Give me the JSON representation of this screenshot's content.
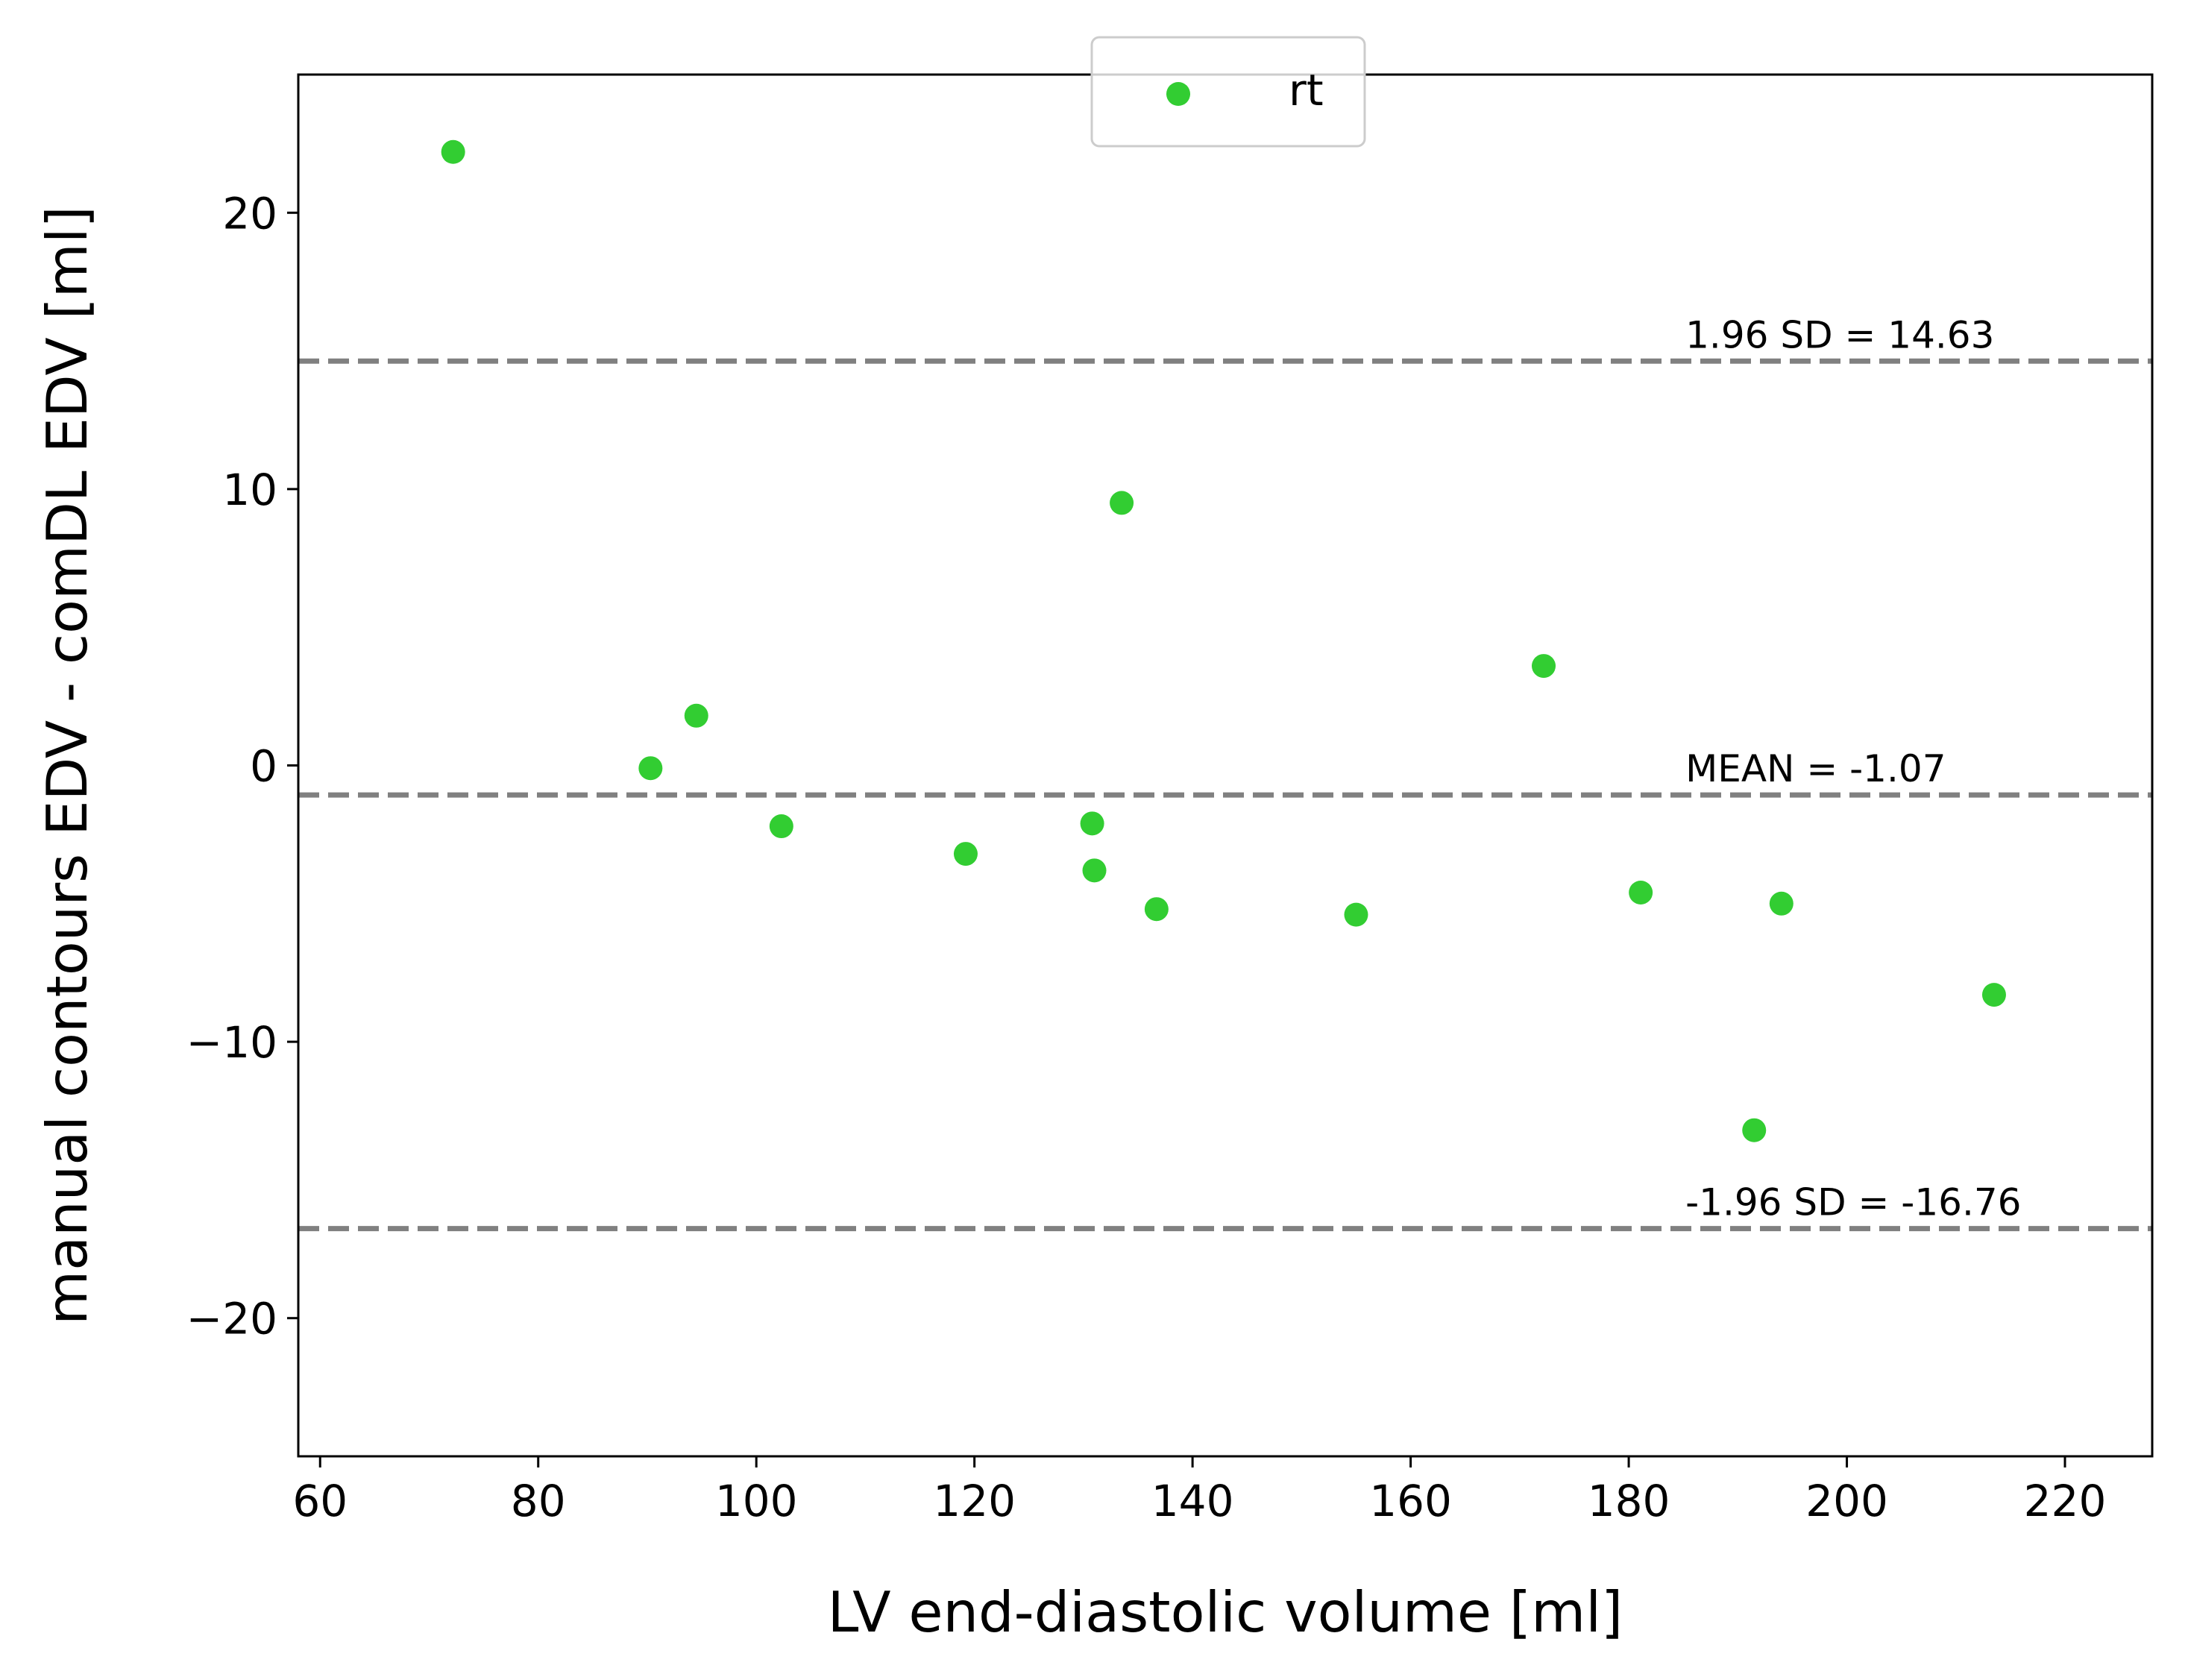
{
  "chart_data": {
    "type": "scatter",
    "xlabel": "LV end-diastolic volume [ml]",
    "ylabel": "manual contours EDV - comDL EDV [ml]",
    "xlim": [
      58,
      228
    ],
    "ylim": [
      -25,
      25
    ],
    "xticks": [
      60,
      80,
      100,
      120,
      140,
      160,
      180,
      200,
      220
    ],
    "yticks": [
      -20,
      -10,
      0,
      10,
      20
    ],
    "ytick_labels": [
      "−20",
      "−10",
      "0",
      "10",
      "20"
    ],
    "grid": false,
    "legend": {
      "placement": "upper-center",
      "entries": [
        "rt"
      ]
    },
    "series": [
      {
        "name": "rt",
        "color": "#32cd32",
        "points": [
          {
            "x": 72.2,
            "y": 22.2
          },
          {
            "x": 90.3,
            "y": -0.1
          },
          {
            "x": 94.5,
            "y": 1.8
          },
          {
            "x": 102.3,
            "y": -2.2
          },
          {
            "x": 119.2,
            "y": -3.2
          },
          {
            "x": 130.8,
            "y": -2.1
          },
          {
            "x": 131.0,
            "y": -3.8
          },
          {
            "x": 133.5,
            "y": 9.5
          },
          {
            "x": 136.7,
            "y": -5.2
          },
          {
            "x": 155.0,
            "y": -5.4
          },
          {
            "x": 172.2,
            "y": 3.6
          },
          {
            "x": 181.1,
            "y": -4.6
          },
          {
            "x": 191.5,
            "y": -13.2
          },
          {
            "x": 194.0,
            "y": -5.0
          },
          {
            "x": 213.5,
            "y": -8.3
          }
        ]
      }
    ],
    "reference_lines": [
      {
        "y": 14.63,
        "label": "1.96 SD = 14.63",
        "color": "#808080"
      },
      {
        "y": -1.07,
        "label": "MEAN = -1.07",
        "color": "#808080"
      },
      {
        "y": -16.76,
        "label": "-1.96 SD = -16.76",
        "color": "#808080"
      }
    ]
  }
}
